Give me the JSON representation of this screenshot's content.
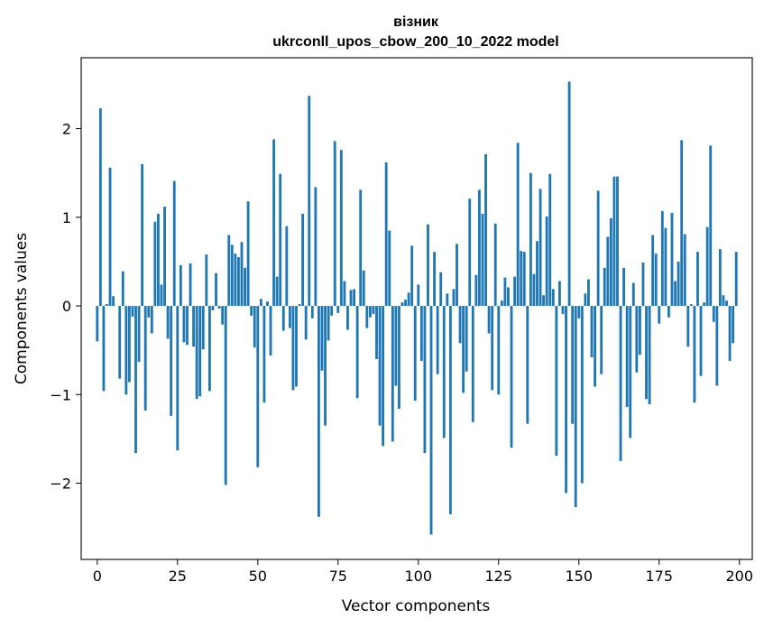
{
  "chart_data": {
    "type": "bar",
    "title": "вiзник",
    "subtitle": "ukrconll_upos_cbow_200_10_2022 model",
    "xlabel": "Vector components",
    "ylabel": "Components values",
    "xlim": [
      -5,
      204
    ],
    "ylim": [
      -2.86,
      2.8
    ],
    "xticks": [
      0,
      25,
      50,
      75,
      100,
      125,
      150,
      175,
      200
    ],
    "xtick_labels": [
      "0",
      "25",
      "50",
      "75",
      "100",
      "125",
      "150",
      "175",
      "200"
    ],
    "yticks": [
      -2,
      -1,
      0,
      1,
      2
    ],
    "ytick_labels": [
      "−2",
      "−1",
      "0",
      "1",
      "2"
    ],
    "bar_color": "#1f77b4",
    "grid": false,
    "x": [
      0,
      1,
      2,
      3,
      4,
      5,
      6,
      7,
      8,
      9,
      10,
      11,
      12,
      13,
      14,
      15,
      16,
      17,
      18,
      19,
      20,
      21,
      22,
      23,
      24,
      25,
      26,
      27,
      28,
      29,
      30,
      31,
      32,
      33,
      34,
      35,
      36,
      37,
      38,
      39,
      40,
      41,
      42,
      43,
      44,
      45,
      46,
      47,
      48,
      49,
      50,
      51,
      52,
      53,
      54,
      55,
      56,
      57,
      58,
      59,
      60,
      61,
      62,
      63,
      64,
      65,
      66,
      67,
      68,
      69,
      70,
      71,
      72,
      73,
      74,
      75,
      76,
      77,
      78,
      79,
      80,
      81,
      82,
      83,
      84,
      85,
      86,
      87,
      88,
      89,
      90,
      91,
      92,
      93,
      94,
      95,
      96,
      97,
      98,
      99,
      100,
      101,
      102,
      103,
      104,
      105,
      106,
      107,
      108,
      109,
      110,
      111,
      112,
      113,
      114,
      115,
      116,
      117,
      118,
      119,
      120,
      121,
      122,
      123,
      124,
      125,
      126,
      127,
      128,
      129,
      130,
      131,
      132,
      133,
      134,
      135,
      136,
      137,
      138,
      139,
      140,
      141,
      142,
      143,
      144,
      145,
      146,
      147,
      148,
      149,
      150,
      151,
      152,
      153,
      154,
      155,
      156,
      157,
      158,
      159,
      160,
      161,
      162,
      163,
      164,
      165,
      166,
      167,
      168,
      169,
      170,
      171,
      172,
      173,
      174,
      175,
      176,
      177,
      178,
      179,
      180,
      181,
      182,
      183,
      184,
      185,
      186,
      187,
      188,
      189,
      190,
      191,
      192,
      193,
      194,
      195,
      196,
      197,
      198,
      199
    ],
    "values": [
      -0.4,
      2.23,
      -0.96,
      0.02,
      1.56,
      0.11,
      0.0,
      -0.82,
      0.39,
      -1.0,
      -0.86,
      -0.12,
      -1.66,
      -0.63,
      1.6,
      -1.18,
      -0.13,
      -0.31,
      0.95,
      1.04,
      0.24,
      1.12,
      -0.37,
      -1.24,
      1.41,
      -1.63,
      0.46,
      -0.41,
      -0.44,
      0.48,
      -0.46,
      -1.05,
      -1.02,
      -0.49,
      0.58,
      -0.96,
      -0.05,
      0.37,
      -0.03,
      -0.21,
      -2.02,
      0.8,
      0.69,
      0.59,
      0.55,
      0.72,
      0.43,
      1.18,
      -0.11,
      -0.47,
      -1.82,
      0.08,
      -1.09,
      0.05,
      -0.56,
      1.88,
      0.33,
      1.49,
      -0.28,
      0.9,
      -0.25,
      -0.95,
      -0.91,
      0.02,
      1.04,
      -0.38,
      2.37,
      -0.14,
      1.34,
      -2.38,
      -0.73,
      -1.35,
      -0.39,
      -0.11,
      1.86,
      -0.08,
      1.76,
      0.28,
      -0.27,
      0.18,
      0.19,
      -1.04,
      1.31,
      0.4,
      -0.25,
      -0.13,
      -0.09,
      -0.6,
      -1.35,
      -1.58,
      1.62,
      0.85,
      -1.53,
      -0.9,
      -1.16,
      0.04,
      0.07,
      0.15,
      0.68,
      -1.07,
      0.24,
      -0.62,
      -1.66,
      0.92,
      -2.58,
      0.61,
      -0.77,
      0.38,
      -1.49,
      0.14,
      -2.35,
      0.19,
      0.7,
      -0.42,
      -0.98,
      -0.74,
      1.21,
      -1.31,
      0.35,
      1.31,
      1.04,
      1.71,
      -0.31,
      -0.95,
      0.93,
      -1.0,
      0.06,
      0.32,
      0.21,
      -1.6,
      0.33,
      1.84,
      0.62,
      0.61,
      -1.33,
      1.5,
      0.36,
      0.73,
      1.32,
      0.12,
      1.01,
      1.49,
      0.19,
      -1.69,
      0.28,
      -0.09,
      -2.11,
      2.53,
      -1.33,
      -2.27,
      -0.14,
      -2.0,
      0.14,
      0.3,
      -0.58,
      -0.91,
      1.3,
      -0.77,
      0.43,
      0.78,
      0.99,
      1.46,
      1.46,
      -1.75,
      0.43,
      -1.14,
      -1.49,
      0.26,
      -0.75,
      -0.55,
      0.49,
      -1.05,
      -1.11,
      0.8,
      0.59,
      -0.2,
      1.07,
      0.88,
      -0.13,
      1.05,
      0.28,
      0.5,
      1.87,
      0.81,
      -0.46,
      0.02,
      -1.09,
      0.61,
      -0.79,
      0.04,
      0.89,
      1.81,
      -0.18,
      -0.9,
      0.64,
      0.12,
      0.06,
      -0.62,
      -0.42,
      0.61
    ]
  }
}
